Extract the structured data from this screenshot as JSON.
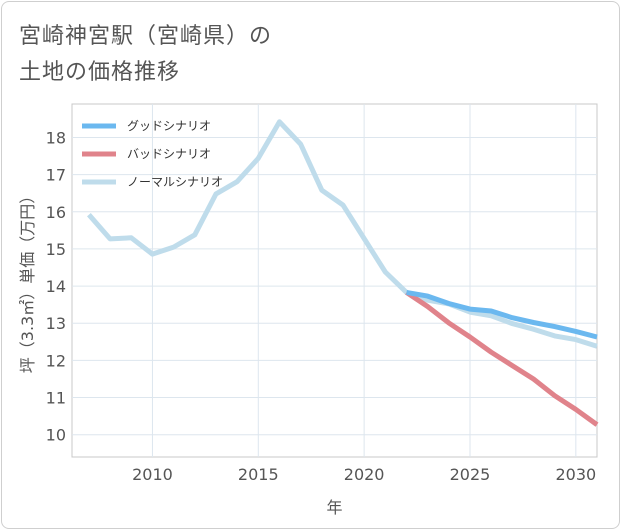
{
  "title_lines": [
    "宮崎神宮駅（宮崎県）の",
    "土地の価格推移"
  ],
  "chart_data": {
    "type": "line",
    "title": "宮崎神宮駅（宮崎県）の土地の価格推移",
    "xlabel": "年",
    "ylabel": "坪（3.3㎡）単価（万円）",
    "xlim": [
      2006.2,
      2031
    ],
    "ylim": [
      9.4,
      18.9
    ],
    "x_ticks": [
      2010,
      2015,
      2020,
      2025,
      2030
    ],
    "y_ticks": [
      10,
      11,
      12,
      13,
      14,
      15,
      16,
      17,
      18
    ],
    "grid": true,
    "legend_position": "top-left",
    "series": [
      {
        "name": "グッドシナリオ",
        "color": "#6bb8ef",
        "x": [
          2022,
          2023,
          2024,
          2025,
          2026,
          2027,
          2028,
          2029,
          2030,
          2031
        ],
        "values": [
          13.83,
          13.73,
          13.53,
          13.38,
          13.33,
          13.15,
          13.02,
          12.91,
          12.78,
          12.63
        ]
      },
      {
        "name": "バッドシナリオ",
        "color": "#e0838b",
        "x": [
          2022,
          2023,
          2024,
          2025,
          2026,
          2027,
          2028,
          2029,
          2030,
          2031
        ],
        "values": [
          13.83,
          13.45,
          13.01,
          12.63,
          12.22,
          11.86,
          11.5,
          11.05,
          10.68,
          10.27
        ]
      },
      {
        "name": "ノーマルシナリオ",
        "color": "#bfdceb",
        "x": [
          2007,
          2008,
          2009,
          2010,
          2011,
          2012,
          2013,
          2014,
          2015,
          2016,
          2017,
          2018,
          2019,
          2020,
          2021,
          2022,
          2023,
          2024,
          2025,
          2026,
          2027,
          2028,
          2029,
          2030,
          2031
        ],
        "values": [
          15.92,
          15.27,
          15.3,
          14.86,
          15.05,
          15.38,
          16.48,
          16.81,
          17.44,
          18.42,
          17.82,
          16.58,
          16.18,
          15.28,
          14.38,
          13.83,
          13.62,
          13.52,
          13.3,
          13.2,
          12.99,
          12.84,
          12.66,
          12.56,
          12.38
        ]
      }
    ]
  }
}
